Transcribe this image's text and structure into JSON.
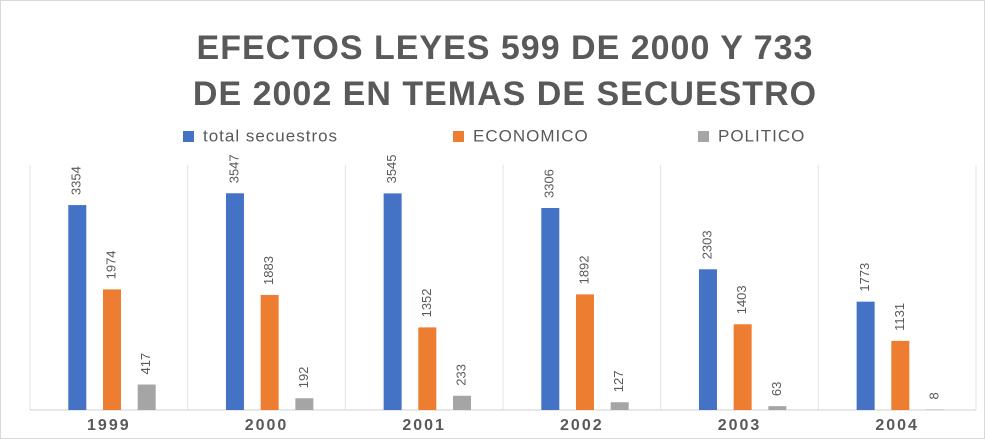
{
  "chart_data": {
    "type": "bar",
    "title": [
      "EFECTOS LEYES 599 DE 2000 Y 733",
      "DE 2002 EN TEMAS DE SECUESTRO"
    ],
    "categories": [
      "1999",
      "2000",
      "2001",
      "2002",
      "2003",
      "2004"
    ],
    "series": [
      {
        "name": "total secuestros",
        "color": "#4472c4",
        "values": [
          3354,
          3547,
          3545,
          3306,
          2303,
          1773
        ]
      },
      {
        "name": "ECONOMICO",
        "color": "#ed7d31",
        "values": [
          1974,
          1883,
          1352,
          1892,
          1403,
          1131
        ]
      },
      {
        "name": "POLITICO",
        "color": "#a5a5a5",
        "values": [
          417,
          192,
          233,
          127,
          63,
          8
        ]
      }
    ],
    "ylim": [
      0,
      5000
    ],
    "legend": "top"
  }
}
